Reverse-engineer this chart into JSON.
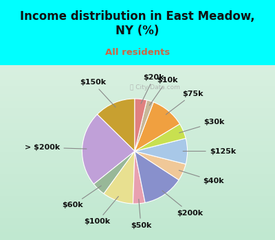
{
  "title": "Income distribution in East Meadow,\nNY (%)",
  "subtitle": "All residents",
  "title_color": "#111111",
  "subtitle_color": "#cc6644",
  "bg_color": "#00ffff",
  "chart_bg_color_top": "#e8f0e0",
  "chart_bg_color_bottom": "#c8e8d8",
  "labels": [
    "$150k",
    "> $200k",
    "$60k",
    "$100k",
    "$50k",
    "$200k",
    "$40k",
    "$125k",
    "$30k",
    "$75k",
    "$10k",
    "$20k"
  ],
  "values": [
    12.0,
    22.0,
    4.0,
    9.0,
    3.5,
    12.0,
    5.0,
    7.5,
    4.5,
    10.0,
    2.0,
    3.5
  ],
  "colors": [
    "#c8a030",
    "#c0a0d8",
    "#98b898",
    "#e8e090",
    "#e8a0b0",
    "#8890cc",
    "#f0c898",
    "#a8c8e8",
    "#c8e050",
    "#f0a040",
    "#c8b898",
    "#e08080"
  ],
  "label_fontsize": 8,
  "title_fontsize": 12,
  "subtitle_fontsize": 9.5,
  "startangle": 90
}
